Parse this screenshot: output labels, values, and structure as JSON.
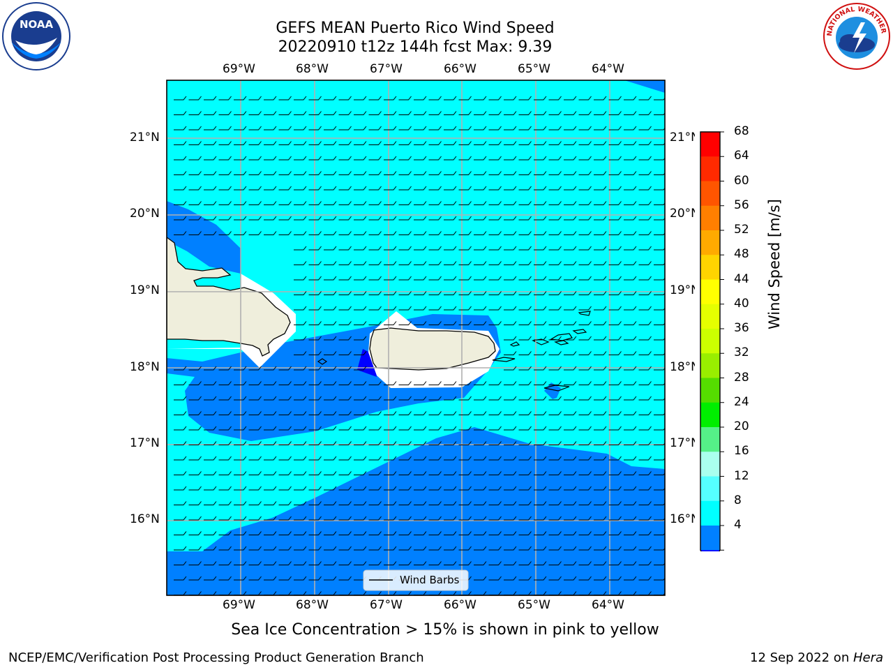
{
  "title": {
    "line1": "GEFS MEAN Puerto Rico Wind Speed",
    "line2": "20220910 t12z 144h fcst   Max: 9.39"
  },
  "logos": {
    "left": {
      "name": "noaa-logo",
      "text": "NOAA"
    },
    "right": {
      "name": "nws-logo",
      "text": "NATIONAL WEATHER SERVICE"
    }
  },
  "axes": {
    "lon_labels": [
      "69°W",
      "68°W",
      "67°W",
      "66°W",
      "65°W",
      "64°W"
    ],
    "lat_labels": [
      "21°N",
      "20°N",
      "19°N",
      "18°N",
      "17°N",
      "16°N"
    ]
  },
  "legend": {
    "label": "Wind Barbs"
  },
  "colorbar": {
    "label": "Wind Speed [m/s]",
    "ticks": [
      "68",
      "64",
      "60",
      "56",
      "52",
      "48",
      "44",
      "40",
      "36",
      "32",
      "28",
      "24",
      "20",
      "16",
      "12",
      "8",
      "4"
    ],
    "colors": [
      "#ff0000",
      "#ff2a00",
      "#ff5500",
      "#ff7f00",
      "#ffaa00",
      "#ffd400",
      "#ffff00",
      "#e5ff00",
      "#ccff00",
      "#99ee00",
      "#55dd00",
      "#00ee00",
      "#55f088",
      "#aaffee",
      "#55ffff",
      "#00ffff",
      "#0080ff"
    ],
    "under_color": "#0000ff"
  },
  "colors": {
    "ocean_light": "#00ffff",
    "ocean_mid": "#0080ff",
    "land": "#efeedc"
  },
  "subtitle": "Sea Ice Concentration > 15% is shown in pink to yellow",
  "footer": {
    "left": "NCEP/EMC/Verification Post Processing Product Generation Branch",
    "right_date": "12 Sep 2022 on ",
    "right_host": "Hera"
  }
}
